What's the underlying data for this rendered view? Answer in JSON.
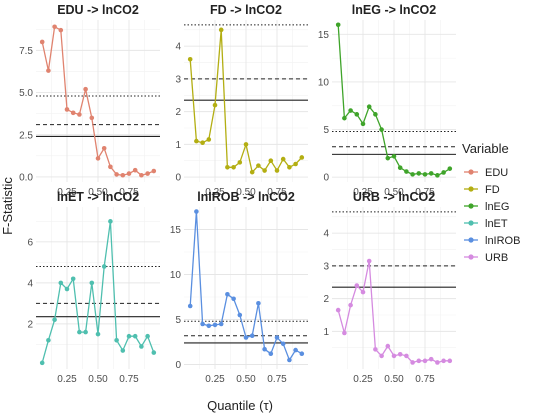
{
  "figure": {
    "ylabel": "F-Statistic",
    "xlabel": "Quantile (τ)",
    "legend_title": "Variable",
    "legend_position": "right"
  },
  "colors": {
    "EDU": "#E0836F",
    "FD": "#B3AE12",
    "lnEG": "#3FA42A",
    "lnET": "#4FBFAF",
    "lnIROB": "#5A8FE0",
    "URB": "#D58BE0"
  },
  "legend": {
    "title": "Variable",
    "items": [
      "EDU",
      "FD",
      "lnEG",
      "lnET",
      "lnIROB",
      "URB"
    ]
  },
  "chart_data": [
    {
      "type": "line",
      "title": "EDU -> lnCO2",
      "series_name": "EDU",
      "xlim": [
        0,
        1
      ],
      "ylim": [
        -0.3,
        9.3
      ],
      "grid": true,
      "x_ticks": [
        0.25,
        0.5,
        0.75
      ],
      "x_tick_labels": [
        "0.25",
        "0.50",
        "0.75"
      ],
      "y_ticks": [
        0,
        2.5,
        5,
        7.5
      ],
      "y_tick_labels": [
        "0.0",
        "2.5",
        "5.0",
        "7.5"
      ],
      "ref_lines": {
        "solid": 2.4,
        "dashed": 3.1,
        "dotted": 4.8
      },
      "x": [
        0.05,
        0.1,
        0.15,
        0.2,
        0.25,
        0.3,
        0.35,
        0.4,
        0.45,
        0.5,
        0.55,
        0.6,
        0.65,
        0.7,
        0.75,
        0.8,
        0.85,
        0.9,
        0.95
      ],
      "y": [
        8.0,
        6.3,
        8.9,
        8.7,
        4.0,
        3.8,
        3.7,
        5.2,
        3.5,
        1.1,
        1.7,
        0.6,
        0.15,
        0.1,
        0.2,
        0.4,
        0.1,
        0.2,
        0.35
      ]
    },
    {
      "type": "line",
      "title": "FD -> lnCO2",
      "series_name": "FD",
      "xlim": [
        0,
        1
      ],
      "ylim": [
        -0.15,
        4.8
      ],
      "grid": true,
      "x_ticks": [
        0.25,
        0.5,
        0.75
      ],
      "x_tick_labels": [
        "0.25",
        "0.50",
        "0.75"
      ],
      "y_ticks": [
        0,
        1,
        2,
        3,
        4
      ],
      "y_tick_labels": [
        "0",
        "1",
        "2",
        "3",
        "4"
      ],
      "ref_lines": {
        "solid": 2.35,
        "dashed": 3.0,
        "dotted": 4.65
      },
      "x": [
        0.05,
        0.1,
        0.15,
        0.2,
        0.25,
        0.3,
        0.35,
        0.4,
        0.45,
        0.5,
        0.55,
        0.6,
        0.65,
        0.7,
        0.75,
        0.8,
        0.85,
        0.9,
        0.95
      ],
      "y": [
        3.6,
        1.1,
        1.05,
        1.15,
        2.2,
        4.5,
        0.3,
        0.3,
        0.45,
        1.0,
        0.15,
        0.35,
        0.2,
        0.5,
        0.2,
        0.55,
        0.3,
        0.4,
        0.6
      ]
    },
    {
      "type": "line",
      "title": "lnEG -> lnCO2",
      "series_name": "lnEG",
      "xlim": [
        0,
        1
      ],
      "ylim": [
        -0.5,
        16.5
      ],
      "grid": true,
      "x_ticks": [
        0.25,
        0.5,
        0.75
      ],
      "x_tick_labels": [
        "0.25",
        "0.50",
        "0.75"
      ],
      "y_ticks": [
        0,
        5,
        10,
        15
      ],
      "y_tick_labels": [
        "0",
        "5",
        "10",
        "15"
      ],
      "ref_lines": {
        "solid": 2.4,
        "dashed": 3.2,
        "dotted": 4.8
      },
      "x": [
        0.05,
        0.1,
        0.15,
        0.2,
        0.25,
        0.3,
        0.35,
        0.4,
        0.45,
        0.5,
        0.55,
        0.6,
        0.65,
        0.7,
        0.75,
        0.8,
        0.85,
        0.9,
        0.95
      ],
      "y": [
        16.0,
        6.2,
        7.0,
        6.6,
        5.6,
        7.4,
        6.6,
        5.0,
        2.0,
        2.2,
        1.0,
        0.6,
        0.3,
        0.4,
        0.3,
        0.4,
        0.2,
        0.5,
        0.9
      ]
    },
    {
      "type": "line",
      "title": "lnET -> lnCO2",
      "series_name": "lnET",
      "xlim": [
        0,
        1
      ],
      "ylim": [
        -0.2,
        7.7
      ],
      "grid": true,
      "x_ticks": [
        0.25,
        0.5,
        0.75
      ],
      "x_tick_labels": [
        "0.25",
        "0.50",
        "0.75"
      ],
      "y_ticks": [
        2,
        4,
        6
      ],
      "y_tick_labels": [
        "2",
        "4",
        "6"
      ],
      "ref_lines": {
        "solid": 2.35,
        "dashed": 3.0,
        "dotted": 4.8
      },
      "x": [
        0.05,
        0.1,
        0.15,
        0.2,
        0.25,
        0.3,
        0.35,
        0.4,
        0.45,
        0.5,
        0.55,
        0.6,
        0.65,
        0.7,
        0.75,
        0.8,
        0.85,
        0.9,
        0.95
      ],
      "y": [
        0.1,
        1.2,
        2.2,
        4.0,
        3.7,
        4.2,
        1.6,
        1.6,
        4.0,
        1.5,
        4.8,
        7.0,
        1.2,
        0.7,
        1.4,
        1.4,
        0.9,
        1.4,
        0.6
      ]
    },
    {
      "type": "line",
      "title": "lnIROB -> lnCO2",
      "series_name": "lnIROB",
      "xlim": [
        0,
        1
      ],
      "ylim": [
        -0.5,
        17.5
      ],
      "grid": true,
      "x_ticks": [
        0.25,
        0.5,
        0.75
      ],
      "x_tick_labels": [
        "0.25",
        "0.50",
        "0.75"
      ],
      "y_ticks": [
        0,
        5,
        10,
        15
      ],
      "y_tick_labels": [
        "0",
        "5",
        "10",
        "15"
      ],
      "ref_lines": {
        "solid": 2.4,
        "dashed": 3.2,
        "dotted": 4.8
      },
      "x": [
        0.05,
        0.1,
        0.15,
        0.2,
        0.25,
        0.3,
        0.35,
        0.4,
        0.45,
        0.5,
        0.55,
        0.6,
        0.65,
        0.7,
        0.75,
        0.8,
        0.85,
        0.9,
        0.95
      ],
      "y": [
        6.5,
        17.0,
        4.5,
        4.3,
        4.4,
        4.5,
        7.8,
        7.3,
        5.5,
        3.0,
        3.2,
        6.8,
        1.7,
        1.2,
        3.0,
        2.3,
        0.5,
        1.6,
        1.2
      ]
    },
    {
      "type": "line",
      "title": "URB -> lnCO2",
      "series_name": "URB",
      "xlim": [
        0,
        1
      ],
      "ylim": [
        -0.15,
        4.8
      ],
      "grid": true,
      "x_ticks": [
        0.25,
        0.5,
        0.75
      ],
      "x_tick_labels": [
        "0.25",
        "0.50",
        "0.75"
      ],
      "y_ticks": [
        1,
        2,
        3,
        4
      ],
      "y_tick_labels": [
        "1",
        "2",
        "3",
        "4"
      ],
      "ref_lines": {
        "solid": 2.35,
        "dashed": 3.0,
        "dotted": 4.65
      },
      "x": [
        0.05,
        0.1,
        0.15,
        0.2,
        0.25,
        0.3,
        0.35,
        0.4,
        0.45,
        0.5,
        0.55,
        0.6,
        0.65,
        0.7,
        0.75,
        0.8,
        0.85,
        0.9,
        0.95
      ],
      "y": [
        1.65,
        0.95,
        1.8,
        2.4,
        2.2,
        3.15,
        0.45,
        0.25,
        0.55,
        0.25,
        0.3,
        0.25,
        0.05,
        0.1,
        0.1,
        0.15,
        0.05,
        0.1,
        0.1
      ]
    }
  ]
}
